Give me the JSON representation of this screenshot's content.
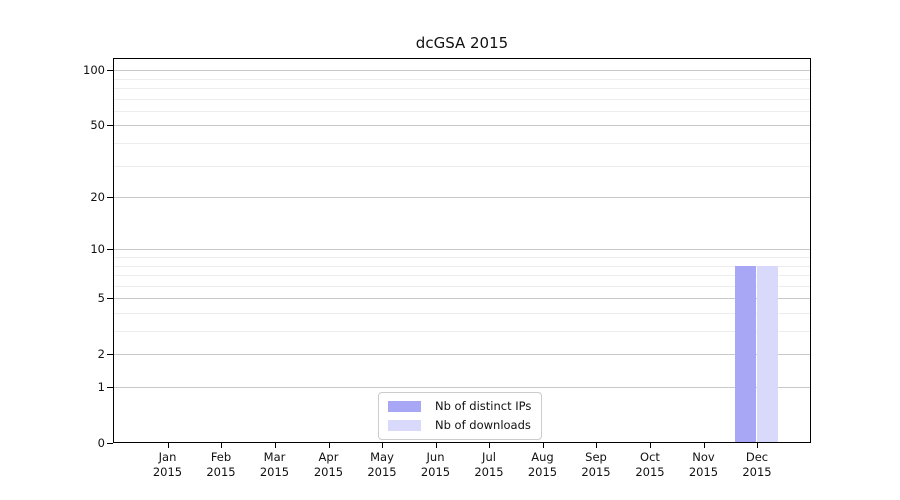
{
  "chart_data": {
    "type": "bar",
    "title": "dcGSA 2015",
    "x": {
      "categories": [
        "Jan",
        "Feb",
        "Mar",
        "Apr",
        "May",
        "Jun",
        "Jul",
        "Aug",
        "Sep",
        "Oct",
        "Nov",
        "Dec"
      ],
      "year": "2015"
    },
    "series": [
      {
        "name": "Nb of distinct IPs",
        "color": "#a7a7f5",
        "values": [
          0,
          0,
          0,
          0,
          0,
          0,
          0,
          0,
          0,
          0,
          0,
          8
        ]
      },
      {
        "name": "Nb of downloads",
        "color": "#d9d9fb",
        "values": [
          0,
          0,
          0,
          0,
          0,
          0,
          0,
          0,
          0,
          0,
          0,
          8
        ]
      }
    ],
    "y_axis": {
      "scale": "log1p",
      "ticks": [
        0,
        1,
        2,
        5,
        10,
        20,
        50,
        100
      ],
      "minor_gridlines": [
        3,
        4,
        6,
        7,
        8,
        9,
        30,
        40,
        60,
        70,
        80,
        90
      ],
      "range": [
        0,
        117
      ]
    },
    "legend_position": "lower center",
    "grid": "horizontal",
    "colors": {
      "grid_major": "#c9c9c9",
      "grid_minor": "#ededed",
      "axis": "#000000",
      "text": "#111111",
      "background": "#ffffff"
    }
  }
}
